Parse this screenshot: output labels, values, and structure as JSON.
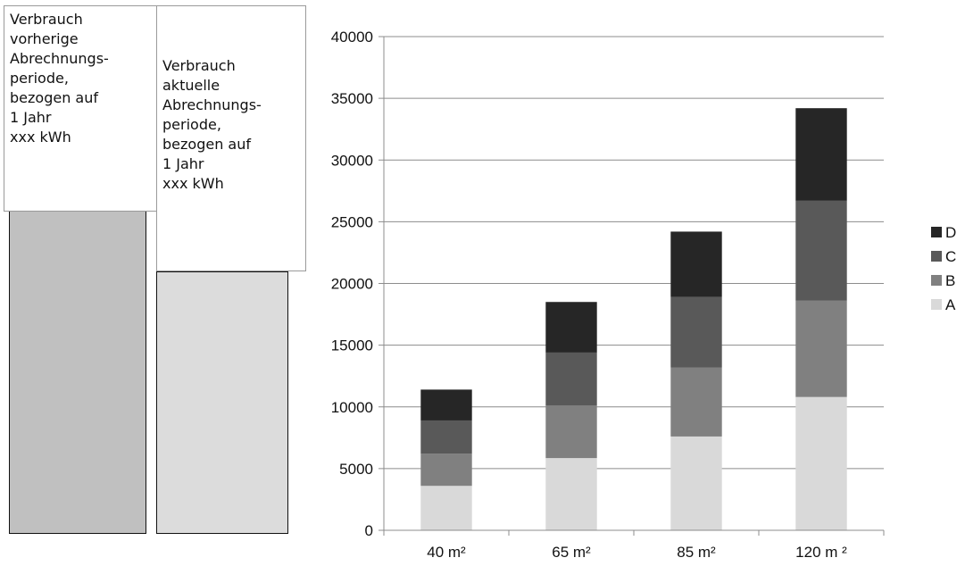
{
  "comparison": {
    "previous": {
      "text": "Verbrauch\nvorherige\nAbrechnungs-\nperiode,\nbezogen auf\n1 Jahr\nxxx kWh",
      "color": "#c0c0c0"
    },
    "current": {
      "text": "Verbrauch\naktuelle\nAbrechnungs-\nperiode,\nbezogen auf\n1 Jahr\nxxx kWh",
      "color": "#dcdcdc"
    }
  },
  "chart_data": {
    "type": "bar",
    "stacked": true,
    "categories": [
      "40 m²",
      "65 m²",
      "85 m²",
      "120 m ²"
    ],
    "ylim": [
      0,
      40000
    ],
    "yticks": [
      0,
      5000,
      10000,
      15000,
      20000,
      25000,
      30000,
      35000,
      40000
    ],
    "grid": true,
    "legend_position": "right",
    "series": [
      {
        "name": "A",
        "color": "#d9d9d9",
        "values": [
          3600,
          5850,
          7600,
          10800
        ]
      },
      {
        "name": "B",
        "color": "#808080",
        "values": [
          2600,
          4250,
          5600,
          7800
        ]
      },
      {
        "name": "C",
        "color": "#595959",
        "values": [
          2700,
          4300,
          5700,
          8100
        ]
      },
      {
        "name": "D",
        "color": "#262626",
        "values": [
          2500,
          4100,
          5300,
          7500
        ]
      }
    ]
  }
}
